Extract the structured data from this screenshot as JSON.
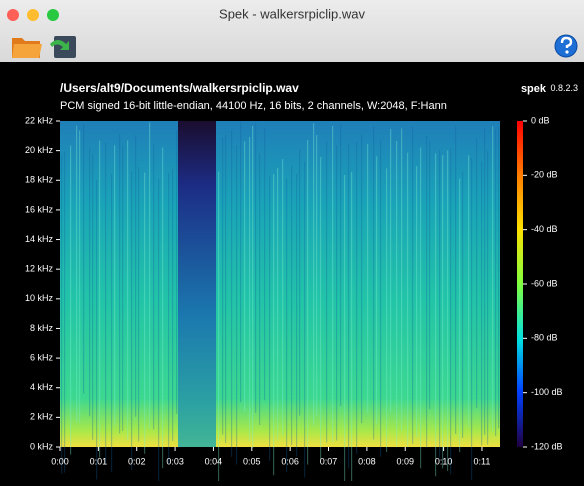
{
  "window": {
    "title": "Spek - walkersrpiclip.wav"
  },
  "header": {
    "file": "/Users/alt9/Documents/walkersrpiclip.wav",
    "app": "spek",
    "version": "0.8.2.3",
    "format": "PCM signed 16-bit little-endian, 44100 Hz, 16 bits, 2 channels, W:2048, F:Hann"
  },
  "axes": {
    "frequency": [
      "22 kHz",
      "20 kHz",
      "18 kHz",
      "16 kHz",
      "14 kHz",
      "12 kHz",
      "10 kHz",
      "8 kHz",
      "6 kHz",
      "4 kHz",
      "2 kHz",
      "0 kHz"
    ],
    "time": [
      "0:00",
      "0:01",
      "0:02",
      "0:03",
      "0:04",
      "0:05",
      "0:06",
      "0:07",
      "0:08",
      "0:09",
      "0:10",
      "0:11"
    ],
    "level": [
      "0 dB",
      "-20 dB",
      "-40 dB",
      "-60 dB",
      "-80 dB",
      "-100 dB",
      "-120 dB"
    ]
  }
}
